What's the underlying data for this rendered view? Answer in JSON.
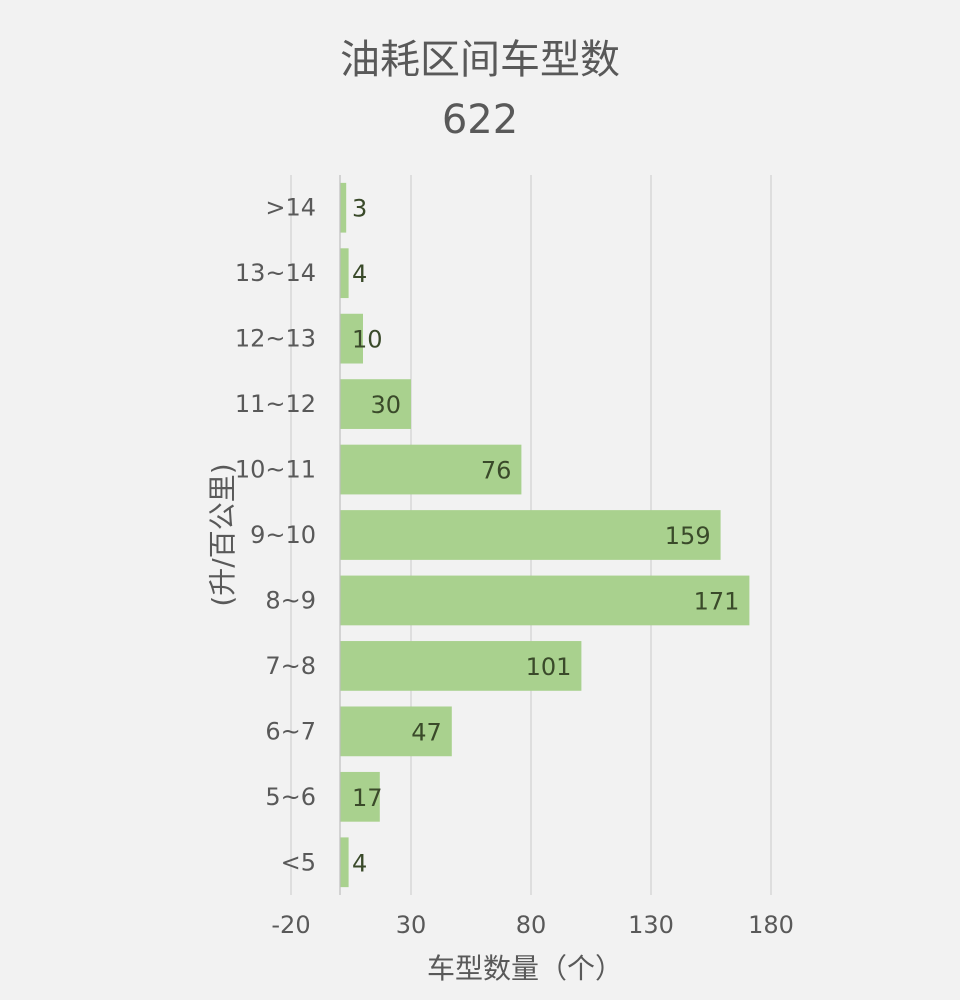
{
  "chart_data": {
    "type": "bar",
    "orientation": "horizontal",
    "title": "油耗区间车型数",
    "subtitle": "622",
    "xlabel": "车型数量（个）",
    "ylabel": "(升/百公里)",
    "categories": [
      ">14",
      "13~14",
      "12~13",
      "11~12",
      "10~11",
      "9~10",
      "8~9",
      "7~8",
      "6~7",
      "5~6",
      "<5"
    ],
    "values": [
      3,
      4,
      10,
      30,
      76,
      159,
      171,
      101,
      47,
      17,
      4
    ],
    "xlim": [
      -20,
      180
    ],
    "xticks": [
      -20,
      30,
      80,
      130,
      180
    ],
    "tick_labels": [
      "-20",
      "30",
      "80",
      "130",
      "180"
    ],
    "grid": "vertical",
    "legend": "none",
    "colors": {
      "bar": "#a9d18e",
      "background": "#f2f2f2",
      "text": "#595959",
      "data_label": "#3a4a2a"
    }
  }
}
